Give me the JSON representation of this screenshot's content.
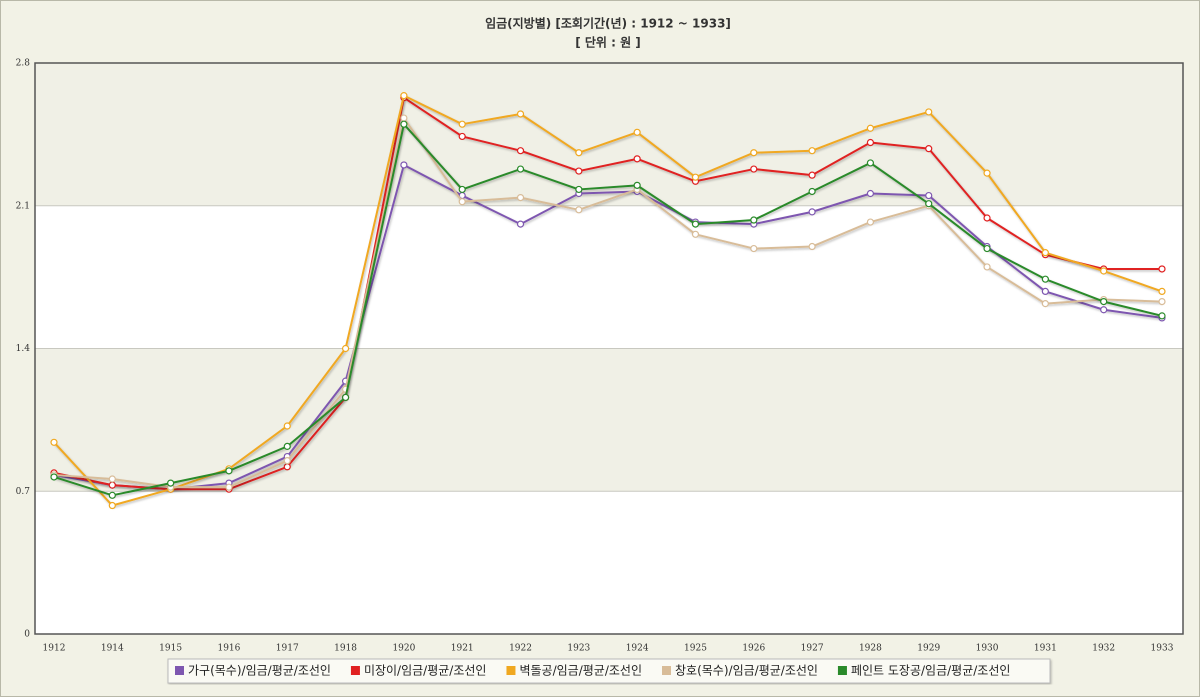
{
  "chart_data": {
    "type": "line",
    "title": "임금(지방별)  [조회기간(년) : 1912 ~ 1933]",
    "subtitle": "[ 단위 : 원 ]",
    "categories": [
      "1912",
      "1914",
      "1915",
      "1916",
      "1917",
      "1918",
      "1920",
      "1921",
      "1922",
      "1923",
      "1924",
      "1925",
      "1926",
      "1927",
      "1928",
      "1929",
      "1930",
      "1931",
      "1932",
      "1933"
    ],
    "ylim": [
      0,
      2.8
    ],
    "yticks": [
      0,
      0.7,
      1.4,
      2.1,
      2.8
    ],
    "grid": true,
    "series": [
      {
        "name": "가구(목수)/임금/평균/조선인",
        "color": "#7e57b0",
        "values": [
          0.78,
          0.73,
          0.71,
          0.74,
          0.87,
          1.24,
          2.3,
          2.15,
          2.01,
          2.16,
          2.17,
          2.02,
          2.01,
          2.07,
          2.16,
          2.15,
          1.9,
          1.68,
          1.59,
          1.55
        ]
      },
      {
        "name": "미장이/임금/평균/조선인",
        "color": "#e02020",
        "values": [
          0.79,
          0.73,
          0.71,
          0.71,
          0.82,
          1.16,
          2.63,
          2.44,
          2.37,
          2.27,
          2.33,
          2.22,
          2.28,
          2.25,
          2.41,
          2.38,
          2.04,
          1.86,
          1.79,
          1.79
        ]
      },
      {
        "name": "벽돌공/임금/평균/조선인",
        "color": "#f0a820",
        "values": [
          0.94,
          0.63,
          0.71,
          0.81,
          1.02,
          1.4,
          2.64,
          2.5,
          2.55,
          2.36,
          2.46,
          2.24,
          2.36,
          2.37,
          2.48,
          2.56,
          2.26,
          1.87,
          1.78,
          1.68
        ]
      },
      {
        "name": "창호(목수)/임금/평균/조선인",
        "color": "#d8bc98",
        "values": [
          0.78,
          0.76,
          0.72,
          0.72,
          0.85,
          1.2,
          2.53,
          2.12,
          2.14,
          2.08,
          2.18,
          1.96,
          1.89,
          1.9,
          2.02,
          2.1,
          1.8,
          1.62,
          1.64,
          1.63
        ]
      },
      {
        "name": "페인트 도장공/임금/평균/조선인",
        "color": "#2a8a2a",
        "values": [
          0.77,
          0.68,
          0.74,
          0.8,
          0.92,
          1.16,
          2.5,
          2.18,
          2.28,
          2.18,
          2.2,
          2.01,
          2.03,
          2.17,
          2.31,
          2.11,
          1.89,
          1.74,
          1.63,
          1.56
        ]
      }
    ]
  }
}
